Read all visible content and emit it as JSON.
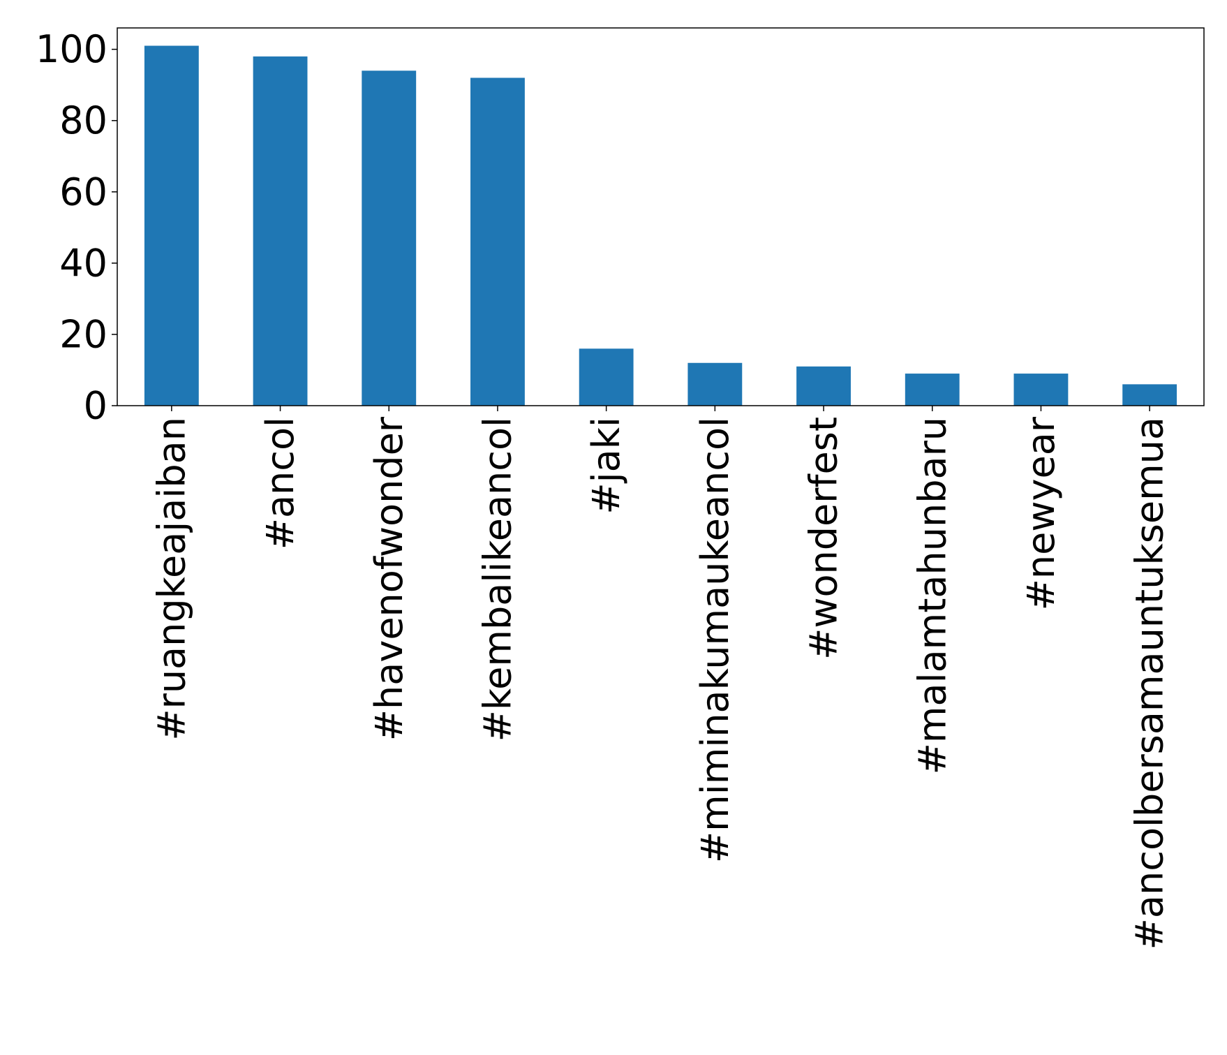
{
  "chart_data": {
    "type": "bar",
    "title": "",
    "xlabel": "",
    "ylabel": "",
    "categories": [
      "#ruangkeajaiban",
      "#ancol",
      "#havenofwonder",
      "#kembalikeancol",
      "#jaki",
      "#miminakumaukeancol",
      "#wonderfest",
      "#malamtahunbaru",
      "#newyear",
      "#ancolbersamauntuksemua"
    ],
    "values": [
      101,
      98,
      94,
      92,
      16,
      12,
      11,
      9,
      9,
      6
    ],
    "ylim": [
      0,
      106
    ],
    "yticks": [
      0,
      20,
      40,
      60,
      80,
      100
    ],
    "bar_color": "#1f77b4",
    "grid": false,
    "legend": "none"
  }
}
